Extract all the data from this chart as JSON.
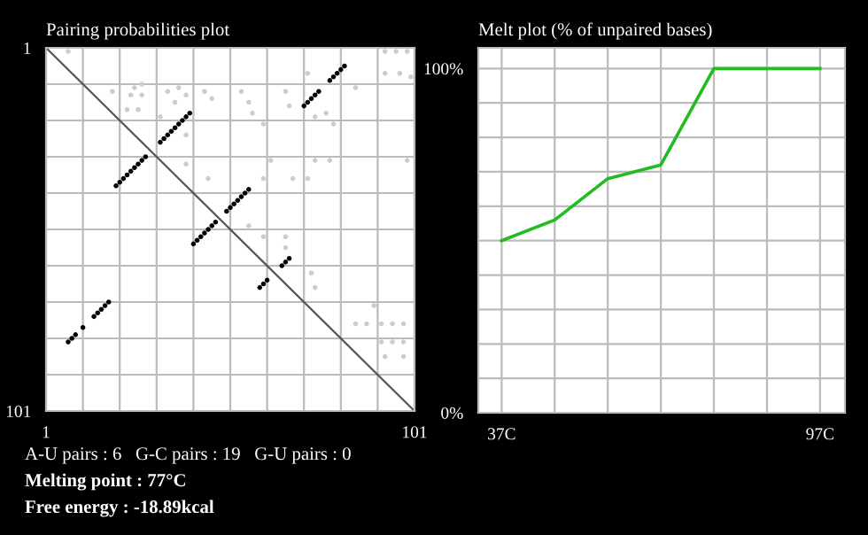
{
  "chart_data": [
    {
      "type": "scatter",
      "title": "Pairing probabilities plot",
      "grid": true,
      "xlim": [
        1,
        101
      ],
      "ylim": [
        101,
        1
      ],
      "xticks": [
        1,
        {
          "value": 11,
          "label": null
        },
        {
          "value": 21,
          "label": null
        },
        {
          "value": 31,
          "label": null
        },
        {
          "value": 41,
          "label": null
        },
        {
          "value": 51,
          "label": null
        },
        {
          "value": 61,
          "label": null
        },
        {
          "value": 71,
          "label": null
        },
        {
          "value": 81,
          "label": null
        },
        {
          "value": 91,
          "label": null
        },
        101
      ],
      "yticks": [
        1,
        {
          "value": 11,
          "label": null
        },
        {
          "value": 21,
          "label": null
        },
        {
          "value": 31,
          "label": null
        },
        {
          "value": 41,
          "label": null
        },
        {
          "value": 51,
          "label": null
        },
        {
          "value": 61,
          "label": null
        },
        {
          "value": 71,
          "label": null
        },
        {
          "value": 81,
          "label": null
        },
        {
          "value": 91,
          "label": null
        },
        101
      ],
      "series": [
        {
          "type": "scatter",
          "marker": "circle",
          "color": "#cccccc",
          "x": [
            7,
            24,
            25,
            27,
            27,
            19,
            23,
            26,
            34,
            37,
            39,
            36,
            44,
            46,
            54,
            56,
            57,
            60,
            66,
            67,
            72,
            74,
            77,
            79,
            85,
            93,
            96,
            99,
            93,
            97,
            100,
            32,
            39,
            39,
            45,
            60,
            62,
            68,
            72,
            74,
            78,
            99,
            56,
            60,
            66,
            66,
            73,
            74,
            85,
            88,
            92,
            95,
            98,
            92,
            95,
            98,
            93,
            98,
            90
          ],
          "values": [
            2,
            14,
            12,
            14,
            11,
            13,
            18,
            18,
            13,
            12,
            14,
            16,
            13,
            15,
            13,
            16,
            19,
            22,
            13,
            17,
            8,
            20,
            19,
            22,
            12,
            2,
            2,
            2,
            8,
            8,
            9,
            20,
            25,
            33,
            37,
            37,
            32,
            37,
            37,
            32,
            32,
            32,
            50,
            53,
            53,
            56,
            63,
            67,
            77,
            77,
            77,
            77,
            77,
            82,
            82,
            82,
            86,
            86,
            72
          ]
        },
        {
          "type": "line",
          "color": "#555555",
          "x": [
            1,
            101
          ],
          "values": [
            1,
            101
          ]
        },
        {
          "type": "scatter",
          "marker": "circle",
          "color": "#000000",
          "x": [
            71,
            72,
            73,
            74,
            75,
            78,
            79,
            80,
            81,
            82,
            32,
            33,
            34,
            35,
            36,
            37,
            38,
            39,
            40,
            50,
            51,
            52,
            53,
            54,
            55,
            56,
            65,
            66,
            67,
            20,
            21,
            22,
            23,
            24,
            25,
            26,
            27,
            28,
            41,
            42,
            43,
            44,
            45,
            46,
            47,
            59,
            60,
            61,
            7,
            8,
            9,
            11,
            14,
            15,
            16,
            17,
            18
          ],
          "values": [
            17,
            16,
            15,
            14,
            13,
            10,
            9,
            8,
            7,
            6,
            27,
            26,
            25,
            24,
            23,
            22,
            21,
            20,
            19,
            46,
            45,
            44,
            43,
            42,
            41,
            40,
            61,
            60,
            59,
            39,
            38,
            37,
            36,
            35,
            34,
            33,
            32,
            31,
            55,
            54,
            53,
            52,
            51,
            50,
            49,
            67,
            66,
            65,
            82,
            81,
            80,
            78,
            75,
            74,
            73,
            72,
            71
          ]
        }
      ],
      "annotations": [
        "A-U pairs : 6   G-C pairs : 19   G-U pairs : 0",
        "Melting point : 77°C",
        "Free energy : -18.89kcal"
      ]
    },
    {
      "type": "line",
      "title": "Melt plot (% of unpaired bases)",
      "grid": true,
      "x": [
        37,
        47,
        57,
        67,
        77,
        87,
        97
      ],
      "values": [
        50,
        56,
        68,
        72,
        100,
        100,
        100
      ],
      "color": "#22bb22",
      "xlim": [
        32.6,
        101.7
      ],
      "ylim": [
        0,
        106
      ],
      "xticks": [
        {
          "value": 37,
          "label": "37C"
        },
        {
          "value": 47,
          "label": null
        },
        {
          "value": 57,
          "label": null
        },
        {
          "value": 67,
          "label": null
        },
        {
          "value": 77,
          "label": null
        },
        {
          "value": 87,
          "label": null
        },
        {
          "value": 97,
          "label": "97C"
        }
      ],
      "yticks": [
        {
          "value": 0,
          "label": "0%"
        },
        {
          "value": 10,
          "label": null
        },
        {
          "value": 20,
          "label": null
        },
        {
          "value": 30,
          "label": null
        },
        {
          "value": 40,
          "label": null
        },
        {
          "value": 50,
          "label": null
        },
        {
          "value": 60,
          "label": null
        },
        {
          "value": 70,
          "label": null
        },
        {
          "value": 80,
          "label": null
        },
        {
          "value": 90,
          "label": null
        },
        {
          "value": 100,
          "label": "100%"
        }
      ]
    }
  ]
}
